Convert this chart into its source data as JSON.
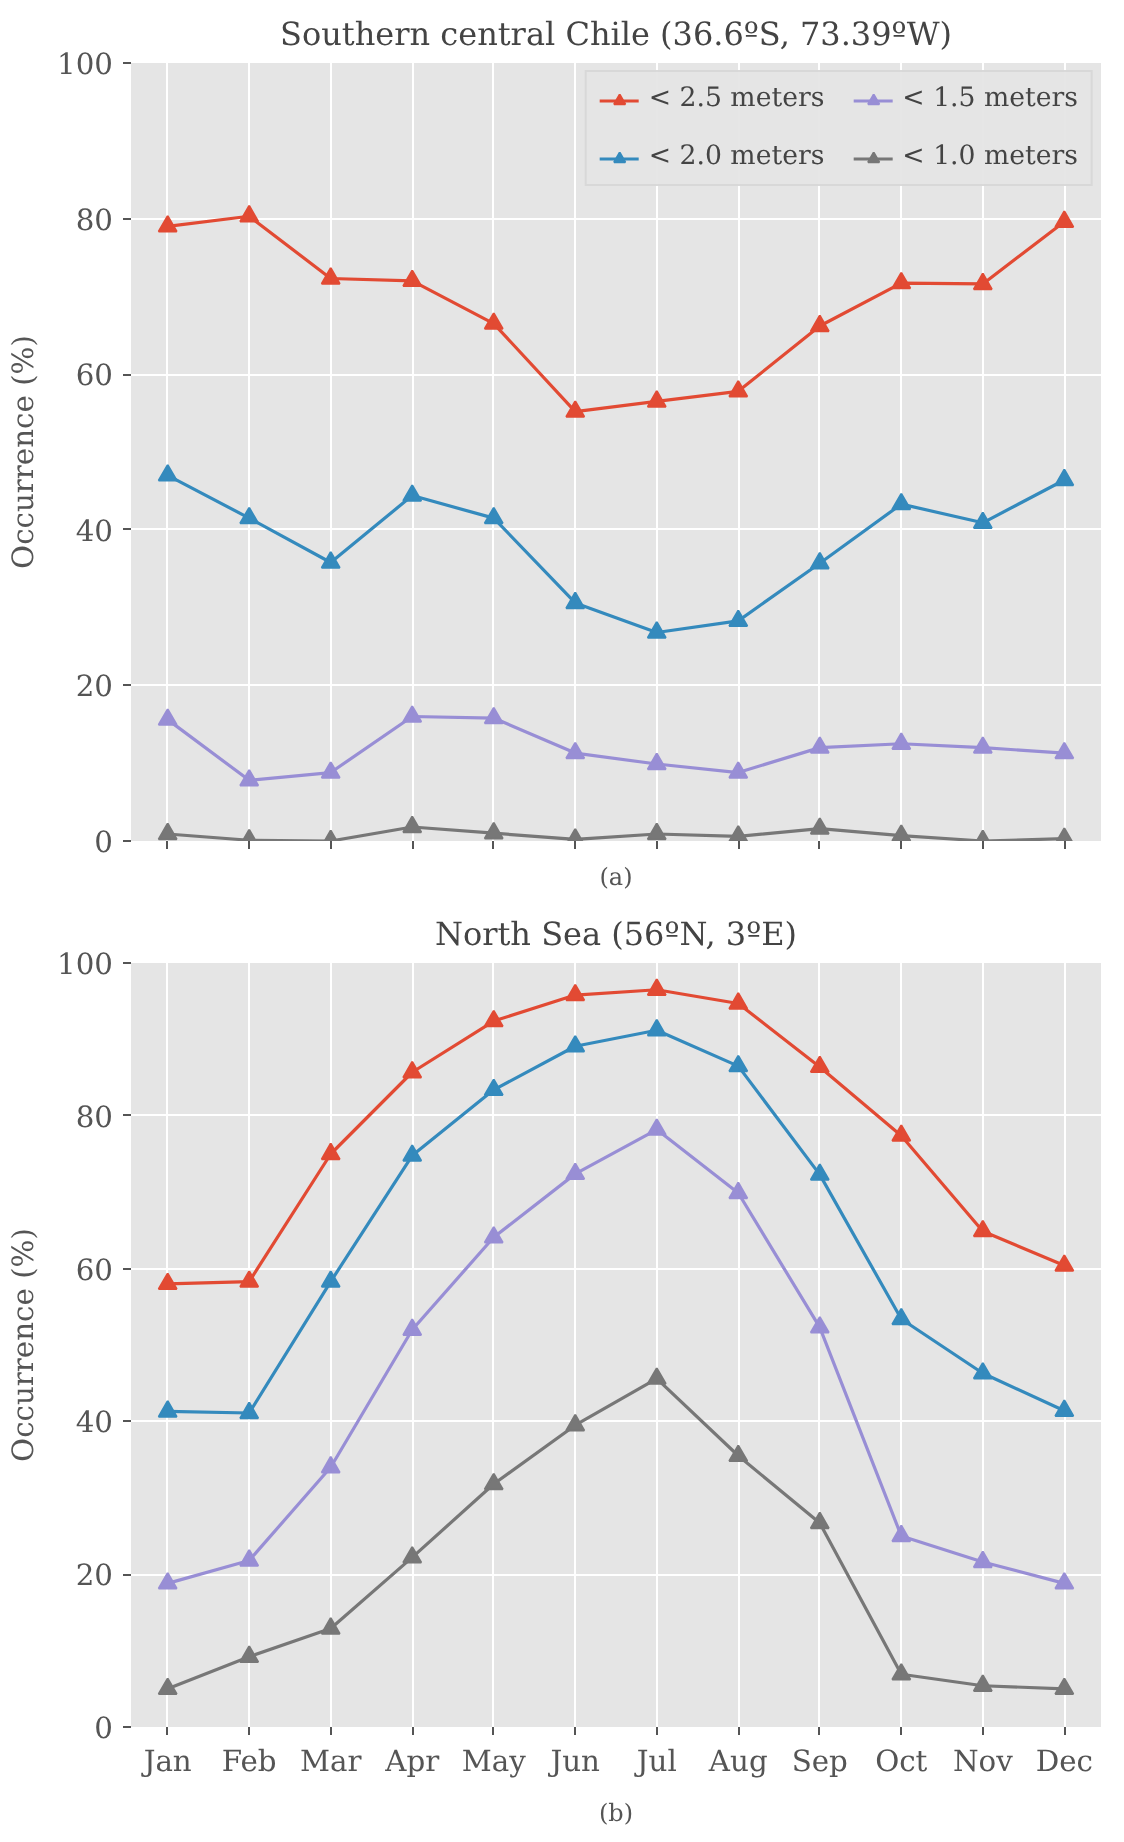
{
  "chart_data": [
    {
      "type": "line",
      "title": "Southern central Chile (36.6ºS, 73.39ºW)",
      "ylabel": "Occurrence (%)",
      "annotations": [
        "(a)"
      ],
      "categories": [
        null,
        null,
        null,
        null,
        null,
        null,
        null,
        null,
        null,
        null,
        null,
        null
      ],
      "series": [
        {
          "name": "< 2.5 meters",
          "color": "#e24a33",
          "values": [
            79,
            80.3,
            72.3,
            72,
            66.5,
            55.2,
            56.5,
            57.8,
            66.2,
            71.7,
            71.6,
            79.6
          ]
        },
        {
          "name": "< 2.0 meters",
          "color": "#348abd",
          "values": [
            47,
            41.5,
            35.8,
            44.4,
            41.5,
            30.6,
            26.8,
            28.3,
            35.7,
            43.3,
            40.9,
            46.4
          ]
        },
        {
          "name": "< 1.5 meters",
          "color": "#988ed5",
          "values": [
            15.6,
            7.8,
            8.8,
            16,
            15.8,
            11.3,
            9.9,
            8.8,
            12,
            12.5,
            12,
            11.3
          ]
        },
        {
          "name": "< 1.0 meters",
          "color": "#777777",
          "values": [
            0.9,
            0.1,
            0,
            1.8,
            1,
            0.2,
            0.9,
            0.6,
            1.6,
            0.7,
            0,
            0.3
          ]
        }
      ],
      "ylim": [
        0,
        100
      ],
      "yticks": [
        0,
        20,
        40,
        60,
        80,
        100
      ],
      "grid": true,
      "legend": "top right",
      "marker": "triangle",
      "line_style": "solid",
      "tick_labels": "y"
    },
    {
      "type": "line",
      "title": "North Sea (56ºN, 3ºE)",
      "ylabel": "Occurrence (%)",
      "annotations": [
        "(b)"
      ],
      "categories": [
        "Jan",
        "Feb",
        "Mar",
        "Apr",
        "May",
        "Jun",
        "Jul",
        "Aug",
        "Sep",
        "Oct",
        "Nov",
        "Dec"
      ],
      "series": [
        {
          "color": "#e24a33",
          "values": [
            58,
            58.3,
            75,
            85.7,
            92.4,
            95.8,
            96.5,
            94.7,
            86.4,
            77.4,
            64.9,
            60.4
          ]
        },
        {
          "color": "#348abd",
          "values": [
            41.3,
            41.1,
            58.3,
            74.8,
            83.4,
            89.1,
            91.2,
            86.5,
            72.3,
            53.4,
            46.3,
            41.4
          ]
        },
        {
          "color": "#988ed5",
          "values": [
            18.8,
            21.8,
            34,
            52,
            64.1,
            72.4,
            78.2,
            69.9,
            52.3,
            25,
            21.6,
            18.8
          ]
        },
        {
          "color": "#777777",
          "values": [
            5,
            9.2,
            12.9,
            22.2,
            31.8,
            39.5,
            45.6,
            35.5,
            26.7,
            6.9,
            5.4,
            5
          ]
        }
      ],
      "ylim": [
        0,
        100
      ],
      "yticks": [
        0,
        20,
        40,
        60,
        80,
        100
      ],
      "grid": true,
      "marker": "triangle",
      "line_style": "solid"
    }
  ]
}
